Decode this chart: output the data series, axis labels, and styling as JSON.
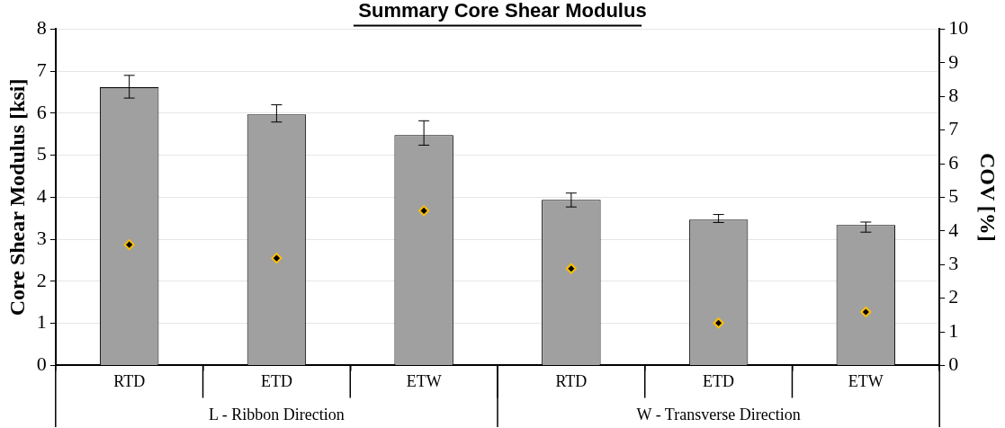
{
  "chart_data": {
    "type": "bar",
    "title": "Summary Core Shear Modulus",
    "ylabel": "Core Shear Modulus [ksi]",
    "y2label": "COV [%]",
    "categories": [
      "RTD",
      "ETD",
      "ETW",
      "RTD",
      "ETD",
      "ETW"
    ],
    "annotations": [
      "L - Ribbon Direction",
      "W - Transverse Direction"
    ],
    "series": [
      {
        "color": "#a0a0a0",
        "values": [
          6.62,
          5.97,
          5.48,
          3.94,
          3.47,
          3.34
        ],
        "errors": [
          [
            6.36,
            6.9
          ],
          [
            5.79,
            6.2
          ],
          [
            5.24,
            5.82
          ],
          [
            3.77,
            4.1
          ],
          [
            3.4,
            3.59
          ],
          [
            3.17,
            3.41
          ]
        ]
      },
      {
        "type": "scatter",
        "axis": "y2",
        "color": "#000000",
        "marker": "diamond",
        "values": [
          3.59,
          3.19,
          4.6,
          2.88,
          1.26,
          1.59
        ]
      }
    ],
    "ylim": [
      0,
      8
    ],
    "yticks": [
      0,
      1,
      2,
      3,
      4,
      5,
      6,
      7,
      8
    ],
    "y2lim": [
      0,
      10
    ],
    "y2ticks": [
      0,
      1,
      2,
      3,
      4,
      5,
      6,
      7,
      8,
      9,
      10
    ],
    "grid": "y",
    "legend": false
  }
}
